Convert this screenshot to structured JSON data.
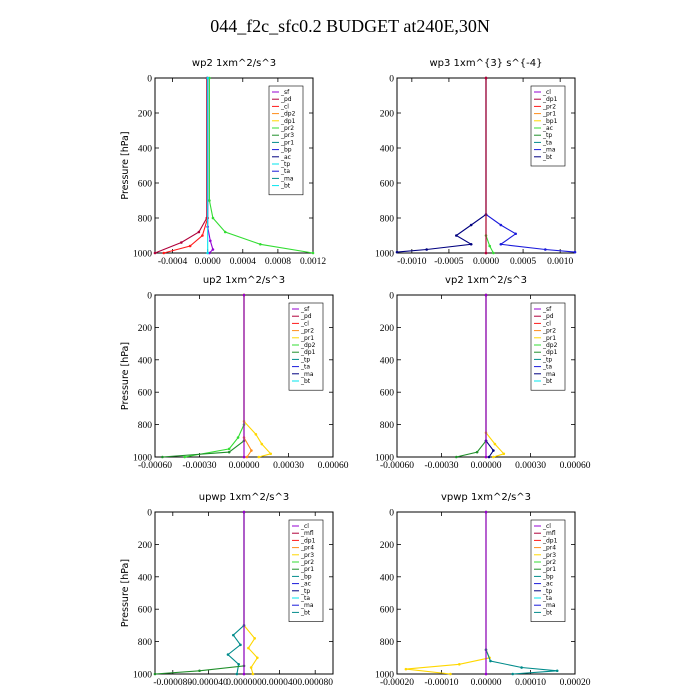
{
  "figure_title": "044_f2c_sfc0.2  BUDGET at240E,30N",
  "colors": {
    "purple": "#9400d3",
    "darkred": "#b0003a",
    "red": "#ff1a1a",
    "orange": "#ff8c1a",
    "yellow": "#ffd700",
    "lime": "#33dd33",
    "green": "#1f8f2a",
    "teal": "#008b8b",
    "blue": "#1a1adb",
    "navy": "#000080",
    "cyan": "#00e5ee"
  },
  "chart_data": [
    {
      "id": "wp2",
      "type": "line",
      "title": "wp2   1xm^2/s^3",
      "ylabel": "Pressure [hPa]",
      "xlim": [
        -0.0006,
        0.0012
      ],
      "ylim": [
        1000,
        0
      ],
      "xticks": [
        -0.0004,
        0.0,
        0.0004,
        0.0008,
        0.0012
      ],
      "xtick_labels": [
        "-0.0004",
        "0.0000",
        "0.0004",
        "0.0008",
        "0.0012"
      ],
      "yticks": [
        0,
        200,
        400,
        600,
        800,
        1000
      ],
      "legend": [
        "_sf",
        "_pd",
        "_cl",
        "_dp2",
        "_dp1",
        "_pr2",
        "_pr3",
        "_pr1",
        "_bp",
        "_ac",
        "_tp",
        "_ta",
        "_ma",
        "_bt"
      ],
      "series": [
        {
          "name": "_ac",
          "color": "lime",
          "points": [
            [
              2e-05,
              0
            ],
            [
              2e-05,
              700
            ],
            [
              6e-05,
              800
            ],
            [
              0.0002,
              880
            ],
            [
              0.0006,
              950
            ],
            [
              0.0012,
              1000
            ]
          ]
        },
        {
          "name": "_pr1",
          "color": "darkred",
          "points": [
            [
              -1e-05,
              0
            ],
            [
              -1e-05,
              800
            ],
            [
              -0.0001,
              880
            ],
            [
              -0.0003,
              940
            ],
            [
              -0.0006,
              1000
            ]
          ]
        },
        {
          "name": "_dp1",
          "color": "red",
          "points": [
            [
              0.0,
              0
            ],
            [
              0.0,
              800
            ],
            [
              -6e-05,
              900
            ],
            [
              -0.0002,
              960
            ],
            [
              -0.0005,
              1000
            ]
          ]
        },
        {
          "name": "_cl",
          "color": "purple",
          "points": [
            [
              0.0,
              0
            ],
            [
              0.0,
              850
            ],
            [
              3e-05,
              930
            ],
            [
              6e-05,
              980
            ],
            [
              2e-05,
              1000
            ]
          ]
        },
        {
          "name": "_bt",
          "color": "cyan",
          "points": [
            [
              0.0,
              0
            ],
            [
              0.0,
              1000
            ]
          ]
        }
      ]
    },
    {
      "id": "wp3",
      "type": "line",
      "title": "wp3   1xm^{3} s^{-4}",
      "ylabel": "",
      "xlim": [
        -0.0012,
        0.0012
      ],
      "ylim": [
        1000,
        0
      ],
      "xticks": [
        -0.001,
        -0.0005,
        0.0,
        0.0005,
        0.001
      ],
      "xtick_labels": [
        "-0.0010",
        "-0.0005",
        "0.0000",
        "0.0005",
        "0.0010"
      ],
      "yticks": [
        0,
        200,
        400,
        600,
        800,
        1000
      ],
      "legend": [
        "_cl",
        "_dp1",
        "_pr2",
        "_pr1",
        "_bp1",
        "_ac",
        "_tp",
        "_ta",
        "_ma",
        "_bt"
      ],
      "series": [
        {
          "name": "_ta",
          "color": "blue",
          "points": [
            [
              0.0,
              0
            ],
            [
              0.0,
              780
            ],
            [
              0.0002,
              840
            ],
            [
              0.0004,
              890
            ],
            [
              0.0002,
              950
            ],
            [
              0.0008,
              980
            ],
            [
              0.0012,
              995
            ]
          ]
        },
        {
          "name": "_tp",
          "color": "navy",
          "points": [
            [
              0.0,
              0
            ],
            [
              0.0,
              780
            ],
            [
              -0.0002,
              840
            ],
            [
              -0.0004,
              900
            ],
            [
              -0.0002,
              950
            ],
            [
              -0.0008,
              980
            ],
            [
              -0.0012,
              995
            ]
          ]
        },
        {
          "name": "_ac",
          "color": "lime",
          "points": [
            [
              0.0,
              0
            ],
            [
              0.0,
              900
            ],
            [
              5e-05,
              960
            ],
            [
              0.0001,
              1000
            ]
          ]
        },
        {
          "name": "_cl",
          "color": "red",
          "points": [
            [
              0.0,
              0
            ],
            [
              0.0,
              1000
            ]
          ]
        },
        {
          "name": "_dp1",
          "color": "darkred",
          "points": [
            [
              0.0,
              0
            ],
            [
              0.0,
              1000
            ]
          ]
        }
      ]
    },
    {
      "id": "up2",
      "type": "line",
      "title": "up2   1xm^2/s^3",
      "ylabel": "Pressure [hPa]",
      "xlim": [
        -0.0006,
        0.0006
      ],
      "ylim": [
        1000,
        0
      ],
      "xticks": [
        -0.0006,
        -0.0003,
        0.0,
        0.0003,
        0.0006
      ],
      "xtick_labels": [
        "-0.00060",
        "-0.00030",
        "0.00000",
        "0.00030",
        "0.00060"
      ],
      "yticks": [
        0,
        200,
        400,
        600,
        800,
        1000
      ],
      "legend": [
        "_sf",
        "_pd",
        "_cl",
        "_pr2",
        "_pr1",
        "_dp2",
        "_dp1",
        "_tp",
        "_ta",
        "_ma",
        "_bt"
      ],
      "series": [
        {
          "name": "_pr1",
          "color": "yellow",
          "points": [
            [
              0.0,
              0
            ],
            [
              0.0,
              780
            ],
            [
              8e-05,
              860
            ],
            [
              0.00012,
              920
            ],
            [
              0.00018,
              980
            ],
            [
              0.0001,
              1000
            ]
          ]
        },
        {
          "name": "_dp2",
          "color": "lime",
          "points": [
            [
              0.0,
              0
            ],
            [
              0.0,
              800
            ],
            [
              -4e-05,
              880
            ],
            [
              -0.0001,
              950
            ],
            [
              -0.0004,
              1000
            ]
          ]
        },
        {
          "name": "_dp1",
          "color": "green",
          "points": [
            [
              0.0,
              0
            ],
            [
              0.0,
              900
            ],
            [
              -0.0001,
              970
            ],
            [
              -0.00055,
              1000
            ]
          ]
        },
        {
          "name": "_pr2",
          "color": "orange",
          "points": [
            [
              0.0,
              0
            ],
            [
              0.0,
              880
            ],
            [
              5e-05,
              960
            ],
            [
              2e-05,
              1000
            ]
          ]
        },
        {
          "name": "_cl",
          "color": "red",
          "points": [
            [
              0.0,
              0
            ],
            [
              0.0,
              1000
            ]
          ]
        },
        {
          "name": "_bt",
          "color": "purple",
          "points": [
            [
              0.0,
              0
            ],
            [
              0.0,
              1000
            ]
          ]
        }
      ]
    },
    {
      "id": "vp2",
      "type": "line",
      "title": "vp2   1xm^2/s^3",
      "ylabel": "",
      "xlim": [
        -0.0006,
        0.0006
      ],
      "ylim": [
        1000,
        0
      ],
      "xticks": [
        -0.0006,
        -0.0003,
        0.0,
        0.0003,
        0.0006
      ],
      "xtick_labels": [
        "-0.00060",
        "-0.00030",
        "0.00000",
        "0.00030",
        "0.00060"
      ],
      "yticks": [
        0,
        200,
        400,
        600,
        800,
        1000
      ],
      "legend": [
        "_sf",
        "_pd",
        "_cl",
        "_pr2",
        "_pr1",
        "_dp2",
        "_dp1",
        "_tp",
        "_ta",
        "_ma",
        "_bt"
      ],
      "series": [
        {
          "name": "_pr1",
          "color": "yellow",
          "points": [
            [
              0.0,
              0
            ],
            [
              0.0,
              850
            ],
            [
              6e-05,
              920
            ],
            [
              0.00012,
              980
            ],
            [
              5e-05,
              1000
            ]
          ]
        },
        {
          "name": "_dp1",
          "color": "green",
          "points": [
            [
              0.0,
              0
            ],
            [
              0.0,
              900
            ],
            [
              -6e-05,
              970
            ],
            [
              -0.0002,
              1000
            ]
          ]
        },
        {
          "name": "_ta",
          "color": "navy",
          "points": [
            [
              0.0,
              0
            ],
            [
              0.0,
              900
            ],
            [
              5e-05,
              960
            ],
            [
              2e-05,
              1000
            ]
          ]
        },
        {
          "name": "_cl",
          "color": "red",
          "points": [
            [
              0.0,
              0
            ],
            [
              0.0,
              1000
            ]
          ]
        },
        {
          "name": "_bt",
          "color": "purple",
          "points": [
            [
              0.0,
              0
            ],
            [
              0.0,
              1000
            ]
          ]
        }
      ]
    },
    {
      "id": "upwp",
      "type": "line",
      "title": "upwp   1xm^2/s^3",
      "ylabel": "Pressure [hPa]",
      "xlim": [
        -0.0001,
        0.0001
      ],
      "ylim": [
        1000,
        0
      ],
      "xticks": [
        -8e-05,
        -4e-05,
        0.0,
        4e-05,
        8e-05
      ],
      "xtick_labels": [
        "-0.000080",
        "-0.000040",
        "0.000000",
        "0.000040",
        "0.000080"
      ],
      "yticks": [
        0,
        200,
        400,
        600,
        800,
        1000
      ],
      "legend": [
        "_cl",
        "_mfl",
        "_dp1",
        "_pr4",
        "_pr3",
        "_pr2",
        "_pr1",
        "_bp",
        "_ac",
        "_tp",
        "_ta",
        "_ma",
        "_bt"
      ],
      "series": [
        {
          "name": "_pr1",
          "color": "yellow",
          "points": [
            [
              0.0,
              0
            ],
            [
              0.0,
              700
            ],
            [
              1.2e-05,
              780
            ],
            [
              5e-06,
              840
            ],
            [
              1.5e-05,
              900
            ],
            [
              8e-06,
              960
            ],
            [
              1e-05,
              1000
            ]
          ]
        },
        {
          "name": "_tp",
          "color": "teal",
          "points": [
            [
              0.0,
              0
            ],
            [
              0.0,
              700
            ],
            [
              -1.2e-05,
              760
            ],
            [
              -4e-06,
              820
            ],
            [
              -1.8e-05,
              880
            ],
            [
              -6e-06,
              940
            ],
            [
              -8e-06,
              1000
            ]
          ]
        },
        {
          "name": "_bp",
          "color": "green",
          "points": [
            [
              0.0,
              0
            ],
            [
              0.0,
              950
            ],
            [
              -5e-05,
              980
            ],
            [
              -0.0001,
              1000
            ]
          ]
        },
        {
          "name": "_dp1",
          "color": "darkred",
          "points": [
            [
              0.0,
              0
            ],
            [
              0.0,
              1000
            ]
          ]
        },
        {
          "name": "_cl",
          "color": "purple",
          "points": [
            [
              0.0,
              0
            ],
            [
              0.0,
              1000
            ]
          ]
        }
      ]
    },
    {
      "id": "vpwp",
      "type": "line",
      "title": "vpwp   1xm^2/s^3",
      "ylabel": "",
      "xlim": [
        -0.0002,
        0.0002
      ],
      "ylim": [
        1000,
        0
      ],
      "xticks": [
        -0.0002,
        -0.0001,
        0.0,
        0.0001,
        0.0002
      ],
      "xtick_labels": [
        "-0.00020",
        "-0.00010",
        "0.00000",
        "0.00010",
        "0.00020"
      ],
      "yticks": [
        0,
        200,
        400,
        600,
        800,
        1000
      ],
      "legend": [
        "_cl",
        "_mfl",
        "_dp1",
        "_pr4",
        "_pr3",
        "_pr2",
        "_pr1",
        "_bp",
        "_ac",
        "_tp",
        "_ta",
        "_ma",
        "_bt"
      ],
      "series": [
        {
          "name": "_pr1",
          "color": "yellow",
          "points": [
            [
              0.0,
              0
            ],
            [
              0.0,
              850
            ],
            [
              8e-06,
              900
            ],
            [
              -6e-05,
              940
            ],
            [
              -0.00018,
              970
            ],
            [
              -8e-05,
              1000
            ]
          ]
        },
        {
          "name": "_tp",
          "color": "teal",
          "points": [
            [
              0.0,
              0
            ],
            [
              0.0,
              850
            ],
            [
              1e-05,
              920
            ],
            [
              8e-05,
              960
            ],
            [
              0.00016,
              980
            ],
            [
              6e-05,
              1000
            ]
          ]
        },
        {
          "name": "_dp1",
          "color": "darkred",
          "points": [
            [
              0.0,
              0
            ],
            [
              0.0,
              1000
            ]
          ]
        },
        {
          "name": "_cl",
          "color": "purple",
          "points": [
            [
              0.0,
              0
            ],
            [
              0.0,
              1000
            ]
          ]
        }
      ]
    }
  ]
}
